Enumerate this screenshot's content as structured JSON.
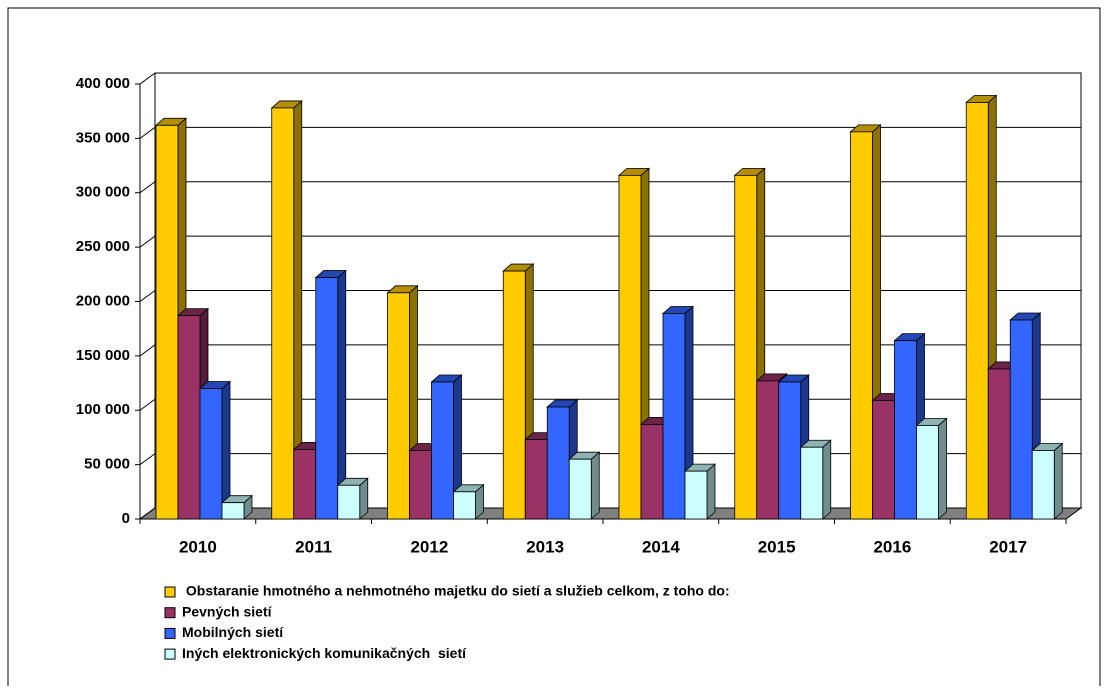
{
  "chart_data": {
    "type": "bar3d",
    "categories": [
      "2010",
      "2011",
      "2012",
      "2013",
      "2014",
      "2015",
      "2016",
      "2017"
    ],
    "series": [
      {
        "name": " Obstaranie hmotného a nehmotného majetku do sietí a služieb celkom, z toho do:",
        "color": "#FFCC00",
        "values": [
          362000,
          378000,
          208000,
          228000,
          316000,
          316000,
          356000,
          383000
        ]
      },
      {
        "name": "Pevných sietí",
        "color": "#993366",
        "values": [
          187000,
          64000,
          63000,
          73000,
          87000,
          127000,
          109000,
          138000
        ]
      },
      {
        "name": "Mobilných sietí",
        "color": "#3366FF",
        "values": [
          120000,
          222000,
          126000,
          103000,
          189000,
          126000,
          164000,
          183000
        ]
      },
      {
        "name": "Iných elektronických komunikačných  sietí",
        "color": "#CCFFFF",
        "values": [
          15000,
          31000,
          25000,
          55000,
          44000,
          66000,
          86000,
          63000
        ]
      }
    ],
    "ylim": [
      0,
      400000
    ],
    "yticks": [
      0,
      {
        "value": 50000,
        "label": "50 000"
      },
      {
        "value": 100000,
        "label": "100 000"
      },
      {
        "value": 150000,
        "label": "150 000"
      },
      {
        "value": 200000,
        "label": "200 000"
      },
      {
        "value": 250000,
        "label": "250 000"
      },
      {
        "value": 300000,
        "label": "300 000"
      },
      {
        "value": 350000,
        "label": "350 000"
      },
      {
        "value": 400000,
        "label": "400 000"
      }
    ],
    "grid": true,
    "legend": "bottom"
  }
}
